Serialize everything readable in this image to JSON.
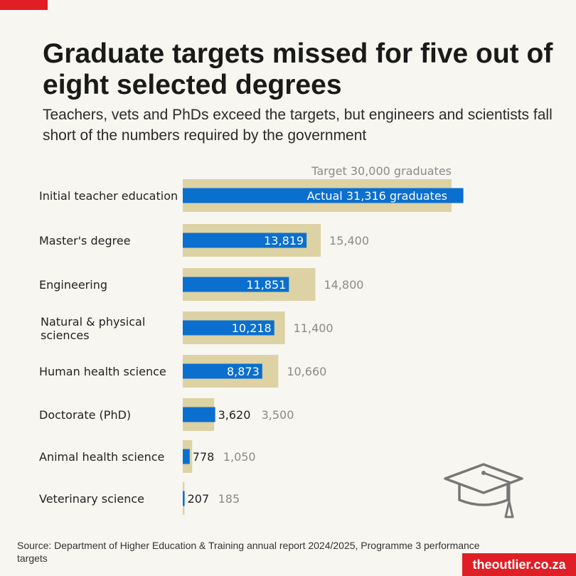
{
  "title": "Graduate targets missed for five out of eight selected degrees",
  "subtitle": "Teachers, vets and PhDs exceed the targets, but engineers and scientists fall short of the numbers required by the government",
  "source": "Source: Department of Higher Education & Training annual report 2024/2025, Programme 3 performance targets",
  "brand": "theoutlier.co.za",
  "icon": "graduation-cap-icon",
  "colors": {
    "accent": "#e01e25",
    "target_bar": "#ddd2a3",
    "actual_bar": "#0b6fcf",
    "muted_text": "#8a8a8a"
  },
  "chart_data": {
    "type": "bar",
    "orientation": "horizontal",
    "target_header": "Target 30,000 graduates",
    "first_actual_label": "Actual 31,316 graduates",
    "categories": [
      "Initial teacher education",
      "Master's degree",
      "Engineering",
      "Natural & physical sciences",
      "Human health science",
      "Doctorate (PhD)",
      "Animal health science",
      "Veterinary science"
    ],
    "series": [
      {
        "name": "Target",
        "values": [
          30000,
          15400,
          14800,
          11400,
          10660,
          3500,
          1050,
          185
        ]
      },
      {
        "name": "Actual",
        "values": [
          31316,
          13819,
          11851,
          10218,
          8873,
          3620,
          778,
          207
        ]
      }
    ],
    "target_labels": [
      "",
      "15,400",
      "14,800",
      "11,400",
      "10,660",
      "3,500",
      "1,050",
      "185"
    ],
    "actual_labels": [
      "",
      "13,819",
      "11,851",
      "10,218",
      "8,873",
      "3,620",
      "778",
      "207"
    ],
    "xlim": [
      0,
      30000
    ],
    "grid": false,
    "legend": "none"
  }
}
